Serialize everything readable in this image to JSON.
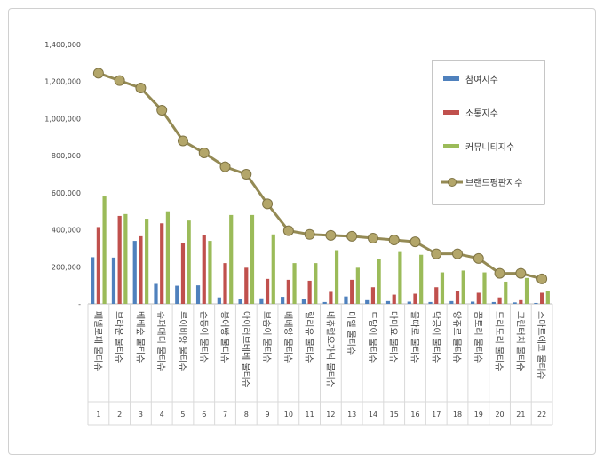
{
  "chart_data": {
    "type": "bar",
    "title": "",
    "xlabel": "",
    "ylabel": "",
    "ylim": [
      0,
      1400000
    ],
    "yticks": [
      "-",
      "200,000",
      "400,000",
      "600,000",
      "800,000",
      "1,000,000",
      "1,200,000",
      "1,400,000"
    ],
    "grid": false,
    "legend_position": "right",
    "ranks": [
      "1",
      "2",
      "3",
      "4",
      "5",
      "6",
      "7",
      "8",
      "9",
      "10",
      "11",
      "12",
      "13",
      "14",
      "15",
      "16",
      "17",
      "18",
      "19",
      "20",
      "21",
      "22"
    ],
    "categories": [
      "페넬로페 물티슈",
      "브라운 물티슈",
      "베베숲 물티슈",
      "슈퍼대디 물티슈",
      "루이비앙 물티슈",
      "순둥이 물티슈",
      "봉어빵 물티슈",
      "아이러브베베 물티슈",
      "보솜이 물티슈",
      "베베앙 물티슈",
      "릴리유 물티슈",
      "네츄럴오가닉 물티슈",
      "미엘 물티슈",
      "도담이 물티슈",
      "마미요 물티슈",
      "물따로 물티슈",
      "닥공이 물티슈",
      "앙쥬르 물티슈",
      "꿈토리 물티슈",
      "도리도리 물티슈",
      "그린터치 물티슈",
      "스마트에코 물티슈"
    ],
    "series": [
      {
        "name": "참여지수",
        "kind": "bar",
        "color": "#4f81bd",
        "values": [
          252000,
          250000,
          340000,
          108000,
          98000,
          100000,
          35000,
          25000,
          30000,
          38000,
          25000,
          10000,
          40000,
          20000,
          15000,
          12000,
          10000,
          15000,
          12000,
          10000,
          8000,
          5000
        ]
      },
      {
        "name": "소통지수",
        "kind": "bar",
        "color": "#c0504d",
        "values": [
          415000,
          475000,
          365000,
          435000,
          330000,
          370000,
          220000,
          195000,
          135000,
          130000,
          125000,
          65000,
          130000,
          90000,
          50000,
          55000,
          90000,
          70000,
          60000,
          35000,
          20000,
          60000
        ]
      },
      {
        "name": "커뮤니티지수",
        "kind": "bar",
        "color": "#9bbb59",
        "values": [
          580000,
          485000,
          460000,
          500000,
          450000,
          340000,
          480000,
          480000,
          375000,
          220000,
          220000,
          290000,
          195000,
          240000,
          280000,
          265000,
          170000,
          180000,
          170000,
          120000,
          140000,
          70000
        ]
      },
      {
        "name": "브랜드평판지수",
        "kind": "line",
        "color": "#948a54",
        "values": [
          1245000,
          1205000,
          1165000,
          1045000,
          880000,
          815000,
          740000,
          700000,
          540000,
          395000,
          375000,
          370000,
          365000,
          355000,
          345000,
          335000,
          270000,
          270000,
          245000,
          165000,
          165000,
          135000
        ]
      }
    ]
  }
}
